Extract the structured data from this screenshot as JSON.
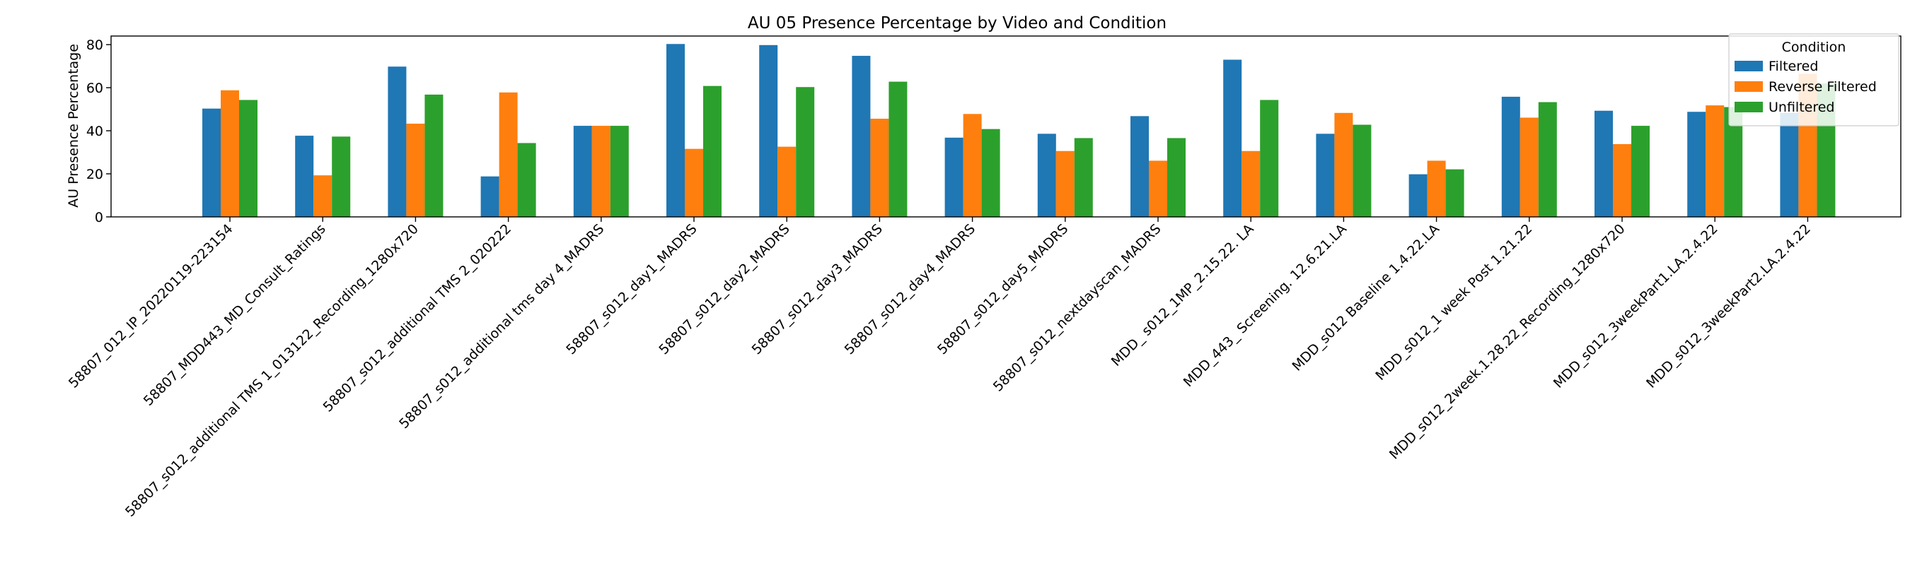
{
  "chart_data": {
    "type": "bar",
    "title": "AU 05 Presence Percentage by Video and Condition",
    "xlabel": "",
    "ylabel": "AU Presence Percentage",
    "ylim": [
      0,
      84
    ],
    "yticks": [
      0,
      20,
      40,
      60,
      80
    ],
    "grid": false,
    "legend": {
      "title": "Condition",
      "placement": "top-right"
    },
    "categories": [
      "58807_012_IP_20220119-223154",
      "58807_MDD443_MD_Consult_Ratings",
      "58807_s012_additional TMS 1_013122_Recording_1280x720",
      "58807_s012_additional TMS 2_020222",
      "58807_s012_additional tms day 4_MADRS",
      "58807_s012_day1_MADRS",
      "58807_s012_day2_MADRS",
      "58807_s012_day3_MADRS",
      "58807_s012_day4_MADRS",
      "58807_s012_day5_MADRS",
      "58807_s012_nextdayscan_MADRS",
      "MDD_ s012_1MP_2.15.22. LA",
      "MDD_443_ Screening. 12.6.21.LA",
      "MDD_s012 Baseline 1.4.22.LA",
      "MDD_s012_1 week Post 1.21.22",
      "MDD_s012_2week.1.28.22_Recording_1280x720",
      "MDD_s012_3weekPart1.LA.2.4.22",
      "MDD_s012_3weekPart2.LA.2.4.22"
    ],
    "series": [
      {
        "name": "Filtered",
        "color": "#1f77b4",
        "values": [
          50.3,
          37.7,
          69.8,
          18.8,
          42.3,
          80.3,
          79.8,
          74.8,
          36.8,
          38.6,
          46.8,
          73.0,
          38.6,
          19.8,
          55.8,
          49.3,
          48.8,
          48.3
        ]
      },
      {
        "name": "Reverse Filtered",
        "color": "#ff7f0e",
        "values": [
          58.8,
          19.3,
          43.3,
          57.8,
          42.3,
          31.6,
          32.6,
          45.6,
          47.8,
          30.6,
          26.1,
          30.6,
          48.3,
          26.1,
          46.1,
          33.8,
          51.8,
          66.5
        ]
      },
      {
        "name": "Unfiltered",
        "color": "#2ca02c",
        "values": [
          54.3,
          37.3,
          56.8,
          34.3,
          42.3,
          60.8,
          60.3,
          62.8,
          40.8,
          36.6,
          36.6,
          54.3,
          42.8,
          22.1,
          53.3,
          42.3,
          51.0,
          62.0
        ]
      }
    ]
  }
}
